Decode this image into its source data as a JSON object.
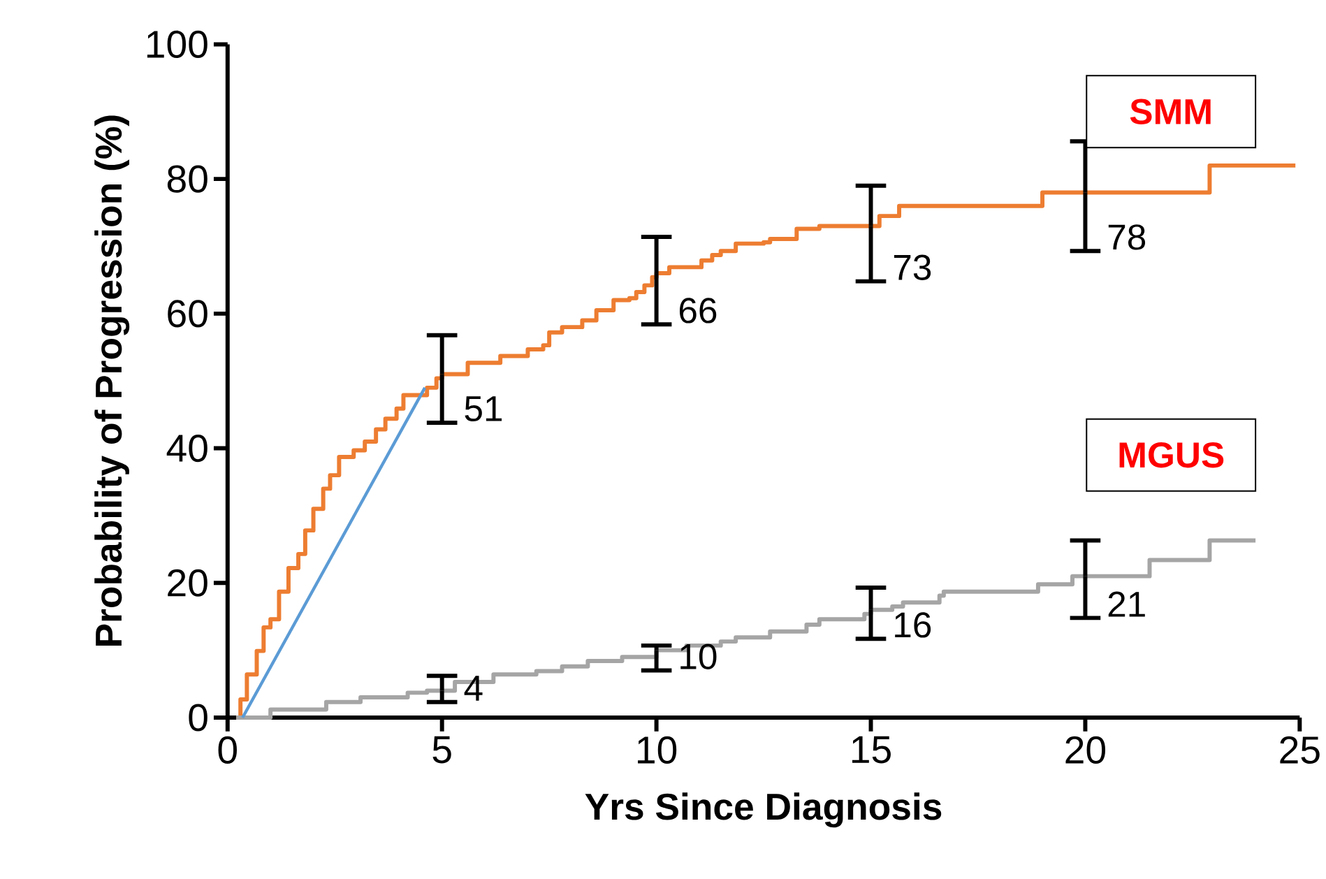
{
  "chart_data": {
    "type": "step",
    "xlabel": "Yrs Since Diagnosis",
    "ylabel": "Probability of Progression (%)",
    "xlim": [
      0,
      25
    ],
    "xticks": [
      0,
      5,
      10,
      15,
      20,
      25
    ],
    "ylim": [
      0,
      100
    ],
    "yticks": [
      0,
      20,
      40,
      60,
      80,
      100
    ],
    "grid": false,
    "series": [
      {
        "name": "SMM",
        "color": "#ed7d31",
        "x": [
          0.2,
          0.3,
          0.45,
          0.68,
          0.84,
          1.0,
          1.2,
          1.42,
          1.65,
          1.81,
          2.0,
          2.23,
          2.39,
          2.6,
          2.94,
          3.2,
          3.46,
          3.68,
          3.94,
          4.1,
          4.65,
          4.87,
          5.0,
          5.6,
          6.36,
          7.0,
          7.36,
          7.5,
          7.8,
          8.27,
          8.6,
          9.0,
          9.37,
          9.53,
          9.72,
          9.9,
          10.0,
          10.3,
          11.05,
          11.3,
          11.5,
          11.85,
          12.5,
          12.65,
          13.27,
          13.8,
          15.0,
          15.2,
          15.66,
          19.0,
          20.0,
          22.9,
          24.9
        ],
        "values": [
          0,
          2.7,
          6.4,
          9.9,
          13.4,
          14.6,
          18.7,
          22.2,
          24.3,
          27.8,
          31,
          34,
          36,
          38.7,
          39.7,
          41,
          42.8,
          44.4,
          45.9,
          47.9,
          49,
          50.4,
          51,
          52.7,
          53.7,
          54.7,
          55.3,
          57.2,
          58,
          59,
          60.5,
          62,
          62.3,
          63.2,
          64.2,
          65.4,
          66,
          66.9,
          67.9,
          68.7,
          69.3,
          70.4,
          70.6,
          71.1,
          72.6,
          73,
          73,
          74.5,
          76,
          78,
          78,
          82,
          82
        ],
        "errors": [
          null,
          null,
          null,
          null,
          null,
          null,
          null,
          null,
          null,
          null,
          null,
          null,
          null,
          null,
          null,
          null,
          null,
          null,
          null,
          null,
          null,
          null,
          [
            43.8,
            56.8
          ],
          null,
          null,
          null,
          null,
          null,
          null,
          null,
          null,
          null,
          null,
          null,
          null,
          null,
          [
            58.4,
            71.4
          ],
          null,
          null,
          null,
          null,
          null,
          null,
          null,
          null,
          null,
          [
            64.8,
            79
          ],
          null,
          null,
          null,
          [
            69.3,
            85.6
          ],
          null,
          null
        ],
        "value_labels": [
          null,
          null,
          null,
          null,
          null,
          null,
          null,
          null,
          null,
          null,
          null,
          null,
          null,
          null,
          null,
          null,
          null,
          null,
          null,
          null,
          null,
          null,
          "51",
          null,
          null,
          null,
          null,
          null,
          null,
          null,
          null,
          null,
          null,
          null,
          null,
          null,
          "66",
          null,
          null,
          null,
          null,
          null,
          null,
          null,
          null,
          null,
          "73",
          null,
          null,
          null,
          "78",
          null,
          null
        ]
      },
      {
        "name": "MGUS",
        "color": "#a5a5a5",
        "x": [
          0.2,
          1.0,
          2.3,
          3.1,
          4.2,
          4.65,
          5.0,
          5.3,
          6.2,
          7.2,
          7.8,
          8.4,
          9.2,
          10.0,
          10.7,
          11.5,
          11.85,
          12.65,
          13.5,
          13.8,
          14.85,
          15.0,
          15.5,
          15.75,
          16.6,
          16.7,
          18.9,
          19.7,
          20.0,
          21.5,
          22.9,
          23.97
        ],
        "values": [
          0,
          1.2,
          2.3,
          3,
          3.7,
          4,
          4,
          5.3,
          6.4,
          6.9,
          7.6,
          8.4,
          9,
          10,
          10.7,
          11.3,
          11.9,
          12.8,
          13.8,
          14.6,
          15.4,
          16,
          16.5,
          17.1,
          18.1,
          18.7,
          19.8,
          21,
          21,
          23.4,
          26.3,
          26.3
        ],
        "errors": [
          null,
          null,
          null,
          null,
          null,
          null,
          [
            2.3,
            6.2
          ],
          null,
          null,
          null,
          null,
          null,
          null,
          [
            7,
            10.7
          ],
          null,
          null,
          null,
          null,
          null,
          null,
          null,
          [
            11.7,
            19.3
          ],
          null,
          null,
          null,
          null,
          null,
          null,
          [
            14.8,
            26.3
          ],
          null,
          null,
          null
        ],
        "value_labels": [
          null,
          null,
          null,
          null,
          null,
          null,
          "4",
          null,
          null,
          null,
          null,
          null,
          null,
          "10",
          null,
          null,
          null,
          null,
          null,
          null,
          null,
          "16",
          null,
          null,
          null,
          null,
          null,
          null,
          "21",
          null,
          null,
          null
        ]
      },
      {
        "type": "line",
        "color": "#5b9bd5",
        "x": [
          0.35,
          4.6
        ],
        "values": [
          0,
          49
        ]
      }
    ]
  }
}
